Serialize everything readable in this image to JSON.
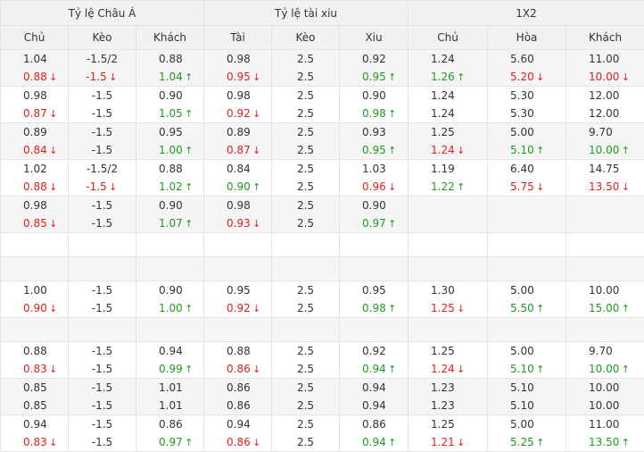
{
  "header": {
    "groups": [
      "Tỷ lệ Châu Á",
      "Tỷ lệ tài xiu",
      "1X2"
    ],
    "columns": [
      "Chủ",
      "Kèo",
      "Khách",
      "Tài",
      "Kèo",
      "Xiu",
      "Chủ",
      "Hòa",
      "Khách"
    ]
  },
  "colors": {
    "up": "#1e9b1e",
    "down": "#e0201b",
    "header_bg": "#f1f1f1",
    "alt_row_bg": "#f5f5f5"
  },
  "icons": {
    "up": "arrow-up-icon",
    "down": "arrow-down-icon"
  },
  "rows": [
    {
      "bg": "alt",
      "h": 41,
      "cells": [
        [
          {
            "t": "1.04"
          },
          {
            "t": "0.88",
            "c": "down"
          }
        ],
        [
          {
            "t": "-1.5/2"
          },
          {
            "t": "-1.5",
            "c": "down"
          }
        ],
        [
          {
            "t": "0.88"
          },
          {
            "t": "1.04",
            "c": "up"
          }
        ],
        [
          {
            "t": "0.98"
          },
          {
            "t": "0.95",
            "c": "down"
          }
        ],
        [
          {
            "t": "2.5"
          },
          {
            "t": "2.5"
          }
        ],
        [
          {
            "t": "0.92"
          },
          {
            "t": "0.95",
            "c": "up"
          }
        ],
        [
          {
            "t": "1.24"
          },
          {
            "t": "1.26",
            "c": "up"
          }
        ],
        [
          {
            "t": "5.60"
          },
          {
            "t": "5.20",
            "c": "down"
          }
        ],
        [
          {
            "t": "11.00"
          },
          {
            "t": "10.00",
            "c": "down"
          }
        ]
      ]
    },
    {
      "bg": "white",
      "h": 41,
      "cells": [
        [
          {
            "t": "0.98"
          },
          {
            "t": "0.87",
            "c": "down"
          }
        ],
        [
          {
            "t": "-1.5"
          },
          {
            "t": "-1.5"
          }
        ],
        [
          {
            "t": "0.90"
          },
          {
            "t": "1.05",
            "c": "up"
          }
        ],
        [
          {
            "t": "0.98"
          },
          {
            "t": "0.92",
            "c": "down"
          }
        ],
        [
          {
            "t": "2.5"
          },
          {
            "t": "2.5"
          }
        ],
        [
          {
            "t": "0.90"
          },
          {
            "t": "0.98",
            "c": "up"
          }
        ],
        [
          {
            "t": "1.24"
          },
          {
            "t": "1.24"
          }
        ],
        [
          {
            "t": "5.30"
          },
          {
            "t": "5.30"
          }
        ],
        [
          {
            "t": "12.00"
          },
          {
            "t": "12.00"
          }
        ]
      ]
    },
    {
      "bg": "alt",
      "h": 41,
      "cells": [
        [
          {
            "t": "0.89"
          },
          {
            "t": "0.84",
            "c": "down"
          }
        ],
        [
          {
            "t": "-1.5"
          },
          {
            "t": "-1.5"
          }
        ],
        [
          {
            "t": "0.95"
          },
          {
            "t": "1.00",
            "c": "up"
          }
        ],
        [
          {
            "t": "0.89"
          },
          {
            "t": "0.87",
            "c": "down"
          }
        ],
        [
          {
            "t": "2.5"
          },
          {
            "t": "2.5"
          }
        ],
        [
          {
            "t": "0.93"
          },
          {
            "t": "0.95",
            "c": "up"
          }
        ],
        [
          {
            "t": "1.25"
          },
          {
            "t": "1.24",
            "c": "down"
          }
        ],
        [
          {
            "t": "5.00"
          },
          {
            "t": "5.10",
            "c": "up"
          }
        ],
        [
          {
            "t": "9.70"
          },
          {
            "t": "10.00",
            "c": "up"
          }
        ]
      ]
    },
    {
      "bg": "white",
      "h": 41,
      "cells": [
        [
          {
            "t": "1.02"
          },
          {
            "t": "0.88",
            "c": "down"
          }
        ],
        [
          {
            "t": "-1.5/2"
          },
          {
            "t": "-1.5",
            "c": "down"
          }
        ],
        [
          {
            "t": "0.88"
          },
          {
            "t": "1.02",
            "c": "up"
          }
        ],
        [
          {
            "t": "0.84"
          },
          {
            "t": "0.90",
            "c": "up"
          }
        ],
        [
          {
            "t": "2.5"
          },
          {
            "t": "2.5"
          }
        ],
        [
          {
            "t": "1.03"
          },
          {
            "t": "0.96",
            "c": "down"
          }
        ],
        [
          {
            "t": "1.19"
          },
          {
            "t": "1.22",
            "c": "up"
          }
        ],
        [
          {
            "t": "6.40"
          },
          {
            "t": "5.75",
            "c": "down"
          }
        ],
        [
          {
            "t": "14.75"
          },
          {
            "t": "13.50",
            "c": "down"
          }
        ]
      ]
    },
    {
      "bg": "alt",
      "h": 41,
      "cells": [
        [
          {
            "t": "0.98"
          },
          {
            "t": "0.85",
            "c": "down"
          }
        ],
        [
          {
            "t": "-1.5"
          },
          {
            "t": "-1.5"
          }
        ],
        [
          {
            "t": "0.90"
          },
          {
            "t": "1.07",
            "c": "up"
          }
        ],
        [
          {
            "t": "0.98"
          },
          {
            "t": "0.93",
            "c": "down"
          }
        ],
        [
          {
            "t": "2.5"
          },
          {
            "t": "2.5"
          }
        ],
        [
          {
            "t": "0.90"
          },
          {
            "t": "0.97",
            "c": "up"
          }
        ],
        [],
        [],
        []
      ]
    },
    {
      "bg": "white",
      "h": 27,
      "cells": [
        [],
        [],
        [],
        [],
        [],
        [],
        [],
        [],
        []
      ]
    },
    {
      "bg": "alt",
      "h": 27,
      "cells": [
        [],
        [],
        [],
        [],
        [],
        [],
        [],
        [],
        []
      ]
    },
    {
      "bg": "white",
      "h": 41,
      "cells": [
        [
          {
            "t": "1.00"
          },
          {
            "t": "0.90",
            "c": "down"
          }
        ],
        [
          {
            "t": "-1.5"
          },
          {
            "t": "-1.5"
          }
        ],
        [
          {
            "t": "0.90"
          },
          {
            "t": "1.00",
            "c": "up"
          }
        ],
        [
          {
            "t": "0.95"
          },
          {
            "t": "0.92",
            "c": "down"
          }
        ],
        [
          {
            "t": "2.5"
          },
          {
            "t": "2.5"
          }
        ],
        [
          {
            "t": "0.95"
          },
          {
            "t": "0.98",
            "c": "up"
          }
        ],
        [
          {
            "t": "1.30"
          },
          {
            "t": "1.25",
            "c": "down"
          }
        ],
        [
          {
            "t": "5.00"
          },
          {
            "t": "5.50",
            "c": "up"
          }
        ],
        [
          {
            "t": "10.00"
          },
          {
            "t": "15.00",
            "c": "up"
          }
        ]
      ]
    },
    {
      "bg": "alt",
      "h": 27,
      "cells": [
        [],
        [],
        [],
        [],
        [],
        [],
        [],
        [],
        []
      ]
    },
    {
      "bg": "white",
      "h": 41,
      "cells": [
        [
          {
            "t": "0.88"
          },
          {
            "t": "0.83",
            "c": "down"
          }
        ],
        [
          {
            "t": "-1.5"
          },
          {
            "t": "-1.5"
          }
        ],
        [
          {
            "t": "0.94"
          },
          {
            "t": "0.99",
            "c": "up"
          }
        ],
        [
          {
            "t": "0.88"
          },
          {
            "t": "0.86",
            "c": "down"
          }
        ],
        [
          {
            "t": "2.5"
          },
          {
            "t": "2.5"
          }
        ],
        [
          {
            "t": "0.92"
          },
          {
            "t": "0.94",
            "c": "up"
          }
        ],
        [
          {
            "t": "1.25"
          },
          {
            "t": "1.24",
            "c": "down"
          }
        ],
        [
          {
            "t": "5.00"
          },
          {
            "t": "5.10",
            "c": "up"
          }
        ],
        [
          {
            "t": "9.70"
          },
          {
            "t": "10.00",
            "c": "up"
          }
        ]
      ]
    },
    {
      "bg": "alt",
      "h": 41,
      "cells": [
        [
          {
            "t": "0.85"
          },
          {
            "t": "0.85"
          }
        ],
        [
          {
            "t": "-1.5"
          },
          {
            "t": "-1.5"
          }
        ],
        [
          {
            "t": "1.01"
          },
          {
            "t": "1.01"
          }
        ],
        [
          {
            "t": "0.86"
          },
          {
            "t": "0.86"
          }
        ],
        [
          {
            "t": "2.5"
          },
          {
            "t": "2.5"
          }
        ],
        [
          {
            "t": "0.94"
          },
          {
            "t": "0.94"
          }
        ],
        [
          {
            "t": "1.23"
          },
          {
            "t": "1.23"
          }
        ],
        [
          {
            "t": "5.10"
          },
          {
            "t": "5.10"
          }
        ],
        [
          {
            "t": "10.00"
          },
          {
            "t": "10.00"
          }
        ]
      ]
    },
    {
      "bg": "white",
      "h": 41,
      "cells": [
        [
          {
            "t": "0.94"
          },
          {
            "t": "0.83",
            "c": "down"
          }
        ],
        [
          {
            "t": "-1.5"
          },
          {
            "t": "-1.5"
          }
        ],
        [
          {
            "t": "0.86"
          },
          {
            "t": "0.97",
            "c": "up"
          }
        ],
        [
          {
            "t": "0.94"
          },
          {
            "t": "0.86",
            "c": "down"
          }
        ],
        [
          {
            "t": "2.5"
          },
          {
            "t": "2.5"
          }
        ],
        [
          {
            "t": "0.86"
          },
          {
            "t": "0.94",
            "c": "up"
          }
        ],
        [
          {
            "t": "1.25"
          },
          {
            "t": "1.21",
            "c": "down"
          }
        ],
        [
          {
            "t": "5.00"
          },
          {
            "t": "5.25",
            "c": "up"
          }
        ],
        [
          {
            "t": "11.00"
          },
          {
            "t": "13.50",
            "c": "up"
          }
        ]
      ]
    }
  ]
}
